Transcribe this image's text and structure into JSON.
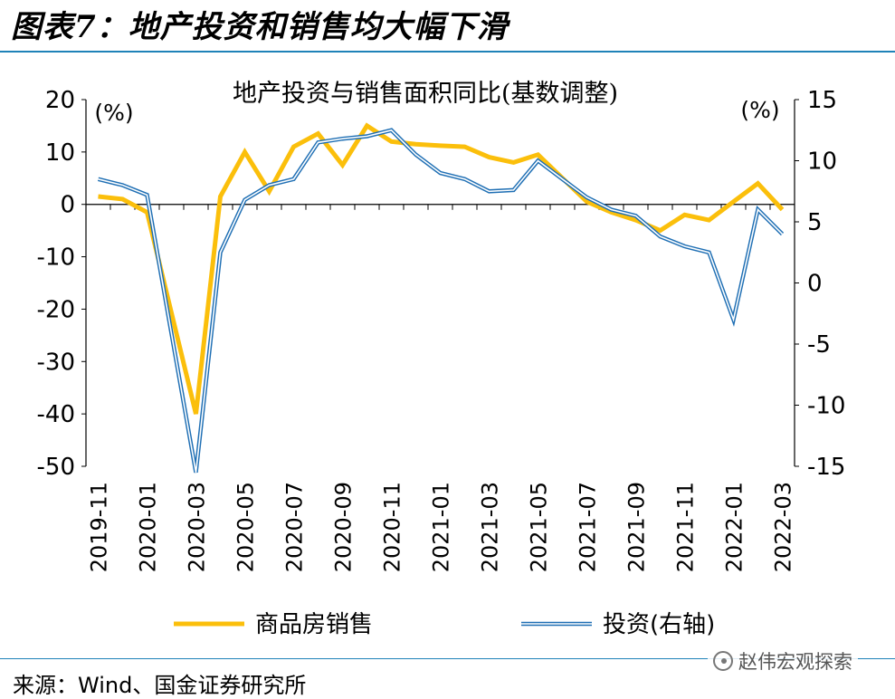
{
  "figure_title": "图表7：地产投资和销售均大幅下滑",
  "source": "来源：Wind、国金证券研究所",
  "watermark": "赵伟宏观探索",
  "colors": {
    "sales": "#fbbf0b",
    "investment": "#1f6fb4",
    "rule": "#1f82b8"
  },
  "chart_data": {
    "type": "line",
    "title": "地产投资与销售面积同比(基数调整)",
    "left_unit": "(%)",
    "right_unit": "(%)",
    "x": [
      "2019-11",
      "2019-12",
      "2020-01",
      "2020-02",
      "2020-03",
      "2020-04",
      "2020-05",
      "2020-06",
      "2020-07",
      "2020-08",
      "2020-09",
      "2020-10",
      "2020-11",
      "2020-12",
      "2021-01",
      "2021-02",
      "2021-03",
      "2021-04",
      "2021-05",
      "2021-06",
      "2021-07",
      "2021-08",
      "2021-09",
      "2021-10",
      "2021-11",
      "2021-12",
      "2022-01",
      "2022-02",
      "2022-03"
    ],
    "x_ticks": [
      "2019-11",
      "2020-01",
      "2020-03",
      "2020-05",
      "2020-07",
      "2020-09",
      "2020-11",
      "2021-01",
      "2021-03",
      "2021-05",
      "2021-07",
      "2021-09",
      "2021-11",
      "2022-01",
      "2022-03"
    ],
    "y_left": {
      "min": -50,
      "max": 20,
      "ticks": [
        20,
        10,
        0,
        -10,
        -20,
        -30,
        -40,
        -50
      ]
    },
    "y_right": {
      "min": -15,
      "max": 15,
      "ticks": [
        15,
        10,
        5,
        0,
        -5,
        -10,
        -15
      ]
    },
    "grid": false,
    "legend_position": "bottom",
    "series": [
      {
        "name": "商品房销售",
        "axis": "left",
        "values": [
          1.5,
          1.0,
          -1.5,
          null,
          -40,
          1.5,
          10.0,
          2.5,
          11.0,
          13.5,
          7.5,
          15.0,
          12.0,
          11.5,
          11.2,
          11.0,
          9.0,
          8.0,
          9.5,
          5.0,
          0.5,
          -1.5,
          -3.0,
          -5.0,
          -2.0,
          -3.0,
          0.5,
          4.0,
          -1.0
        ]
      },
      {
        "name": "投资(右轴)",
        "axis": "right",
        "values": [
          8.5,
          8.0,
          7.2,
          null,
          -15.5,
          2.5,
          6.8,
          8.0,
          8.5,
          11.5,
          11.8,
          12.0,
          12.5,
          10.5,
          9.0,
          8.5,
          7.5,
          7.6,
          10.0,
          8.5,
          7.0,
          6.0,
          5.5,
          3.8,
          3.0,
          2.5,
          -3.0,
          6.0,
          4.0
        ]
      }
    ]
  }
}
